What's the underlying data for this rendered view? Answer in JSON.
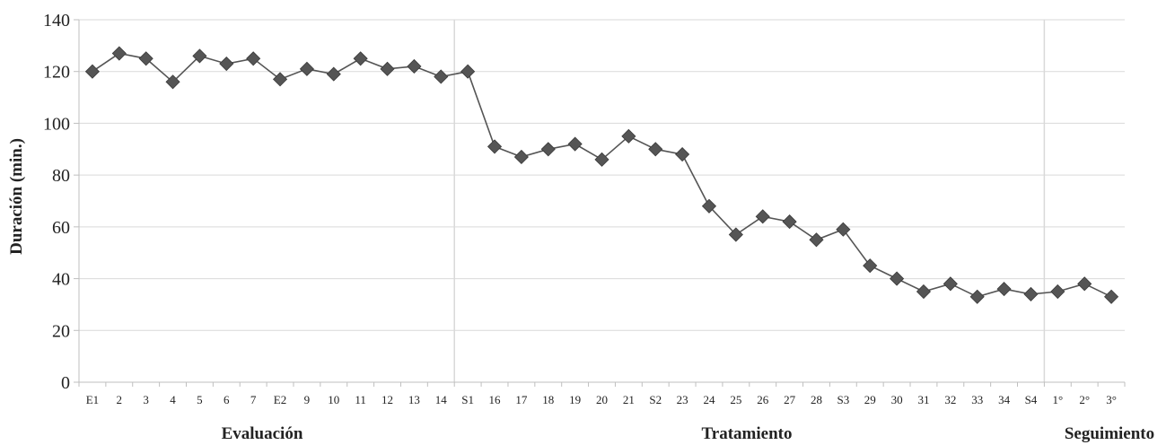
{
  "chart_data": {
    "type": "line",
    "title": "",
    "xlabel": "",
    "ylabel": "Duración (min.)",
    "ylim": [
      0,
      140
    ],
    "yticks": [
      0,
      20,
      40,
      60,
      80,
      100,
      120,
      140
    ],
    "grid": true,
    "legend": "none",
    "categories": [
      "E1",
      "2",
      "3",
      "4",
      "5",
      "6",
      "7",
      "E2",
      "9",
      "10",
      "11",
      "12",
      "13",
      "14",
      "S1",
      "16",
      "17",
      "18",
      "19",
      "20",
      "21",
      "S2",
      "23",
      "24",
      "25",
      "26",
      "27",
      "28",
      "S3",
      "29",
      "30",
      "31",
      "32",
      "33",
      "34",
      "S4",
      "1°",
      "2°",
      "3°"
    ],
    "series": [
      {
        "values": [
          120,
          127,
          125,
          116,
          126,
          123,
          125,
          117,
          121,
          119,
          125,
          121,
          122,
          118,
          120,
          91,
          87,
          90,
          92,
          86,
          95,
          90,
          88,
          68,
          57,
          64,
          62,
          55,
          59,
          45,
          40,
          35,
          38,
          33,
          36,
          34,
          35,
          38,
          33
        ]
      }
    ],
    "phase_dividers_after": [
      "14",
      "S4"
    ],
    "phases": [
      "Evaluación",
      "Tratamiento",
      "Seguimiento"
    ],
    "colors": {
      "line": "#555555",
      "marker": "#555555",
      "grid": "#d9d9d9",
      "axis": "#bfbfbf"
    }
  }
}
